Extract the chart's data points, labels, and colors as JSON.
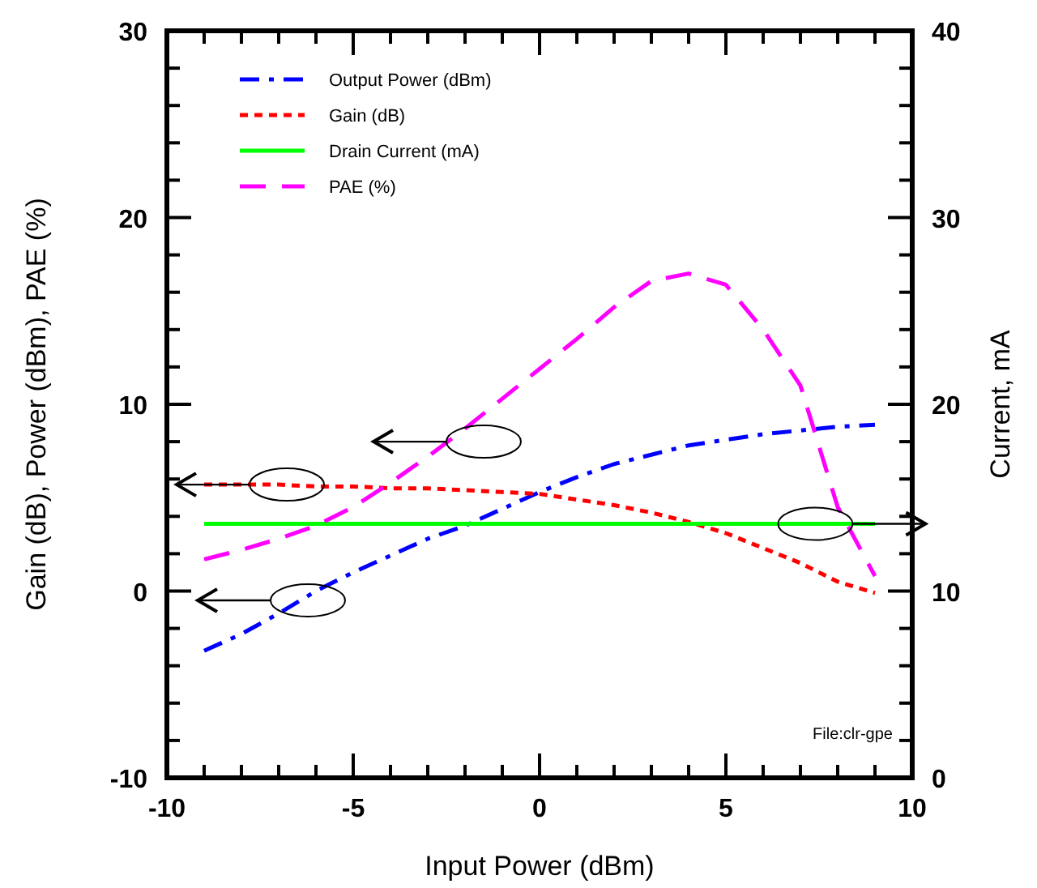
{
  "chart_data": {
    "type": "line",
    "xlabel": "Input Power (dBm)",
    "ylabel": "Gain (dB), Power (dBm), PAE (%)",
    "y2label": "Current, mA",
    "x": [
      -9,
      -8,
      -7,
      -6,
      -5,
      -4,
      -3,
      -2,
      -1,
      0,
      1,
      2,
      3,
      4,
      5,
      6,
      7,
      8,
      9
    ],
    "series": [
      {
        "name": "Output Power (dBm)",
        "color": "#0000ff",
        "line_style": "dashdot",
        "values": [
          -3.2,
          -2.3,
          -1.2,
          0,
          1.0,
          1.9,
          2.8,
          3.5,
          4.4,
          5.3,
          6.1,
          6.8,
          7.3,
          7.8,
          8.1,
          8.4,
          8.6,
          8.8,
          8.9
        ]
      },
      {
        "name": "Gain (dB)",
        "color": "#ff0000",
        "line_style": "dotted",
        "values": [
          5.7,
          5.7,
          5.7,
          5.6,
          5.6,
          5.5,
          5.5,
          5.4,
          5.3,
          5.2,
          4.9,
          4.6,
          4.2,
          3.7,
          3.1,
          2.3,
          1.5,
          0.5,
          -0.1
        ]
      },
      {
        "name": "Drain Current (mA)",
        "color": "#00ff00",
        "line_style": "solid",
        "axis": "y2",
        "values": [
          13.6,
          13.6,
          13.6,
          13.6,
          13.6,
          13.6,
          13.6,
          13.6,
          13.6,
          13.6,
          13.6,
          13.6,
          13.6,
          13.6,
          13.6,
          13.6,
          13.6,
          13.6,
          13.6
        ]
      },
      {
        "name": "PAE (%)",
        "color": "#ff00ff",
        "line_style": "dashed",
        "values": [
          1.7,
          2.2,
          2.8,
          3.5,
          4.5,
          5.8,
          7.2,
          8.7,
          10.3,
          11.9,
          13.5,
          15.2,
          16.6,
          17.0,
          16.4,
          14.0,
          11.0,
          4.5,
          0.8
        ]
      }
    ],
    "xlim": [
      -10,
      10
    ],
    "xticks": [
      -10,
      {
        "value": -9,
        "label": null
      },
      {
        "value": -8,
        "label": null
      },
      {
        "value": -7,
        "label": null
      },
      {
        "value": -6,
        "label": null
      },
      -5,
      {
        "value": -4,
        "label": null
      },
      {
        "value": -3,
        "label": null
      },
      {
        "value": -2,
        "label": null
      },
      {
        "value": -1,
        "label": null
      },
      0,
      {
        "value": 1,
        "label": null
      },
      {
        "value": 2,
        "label": null
      },
      {
        "value": 3,
        "label": null
      },
      {
        "value": 4,
        "label": null
      },
      5,
      {
        "value": 6,
        "label": null
      },
      {
        "value": 7,
        "label": null
      },
      {
        "value": 8,
        "label": null
      },
      {
        "value": 9,
        "label": null
      },
      10
    ],
    "ylim": [
      -10,
      30
    ],
    "yticks": [
      -10,
      {
        "value": -8,
        "label": null
      },
      {
        "value": -6,
        "label": null
      },
      {
        "value": -4,
        "label": null
      },
      {
        "value": -2,
        "label": null
      },
      0,
      {
        "value": 2,
        "label": null
      },
      {
        "value": 4,
        "label": null
      },
      {
        "value": 6,
        "label": null
      },
      {
        "value": 8,
        "label": null
      },
      10,
      {
        "value": 12,
        "label": null
      },
      {
        "value": 14,
        "label": null
      },
      {
        "value": 16,
        "label": null
      },
      {
        "value": 18,
        "label": null
      },
      20,
      {
        "value": 22,
        "label": null
      },
      {
        "value": 24,
        "label": null
      },
      {
        "value": 26,
        "label": null
      },
      {
        "value": 28,
        "label": null
      },
      30
    ],
    "y2lim": [
      0,
      40
    ],
    "y2ticks": [
      0,
      {
        "value": 2,
        "label": null
      },
      {
        "value": 4,
        "label": null
      },
      {
        "value": 6,
        "label": null
      },
      {
        "value": 8,
        "label": null
      },
      10,
      {
        "value": 12,
        "label": null
      },
      {
        "value": 14,
        "label": null
      },
      {
        "value": 16,
        "label": null
      },
      {
        "value": 18,
        "label": null
      },
      20,
      {
        "value": 22,
        "label": null
      },
      {
        "value": 24,
        "label": null
      },
      {
        "value": 26,
        "label": null
      },
      {
        "value": 28,
        "label": null
      },
      30,
      {
        "value": 32,
        "label": null
      },
      {
        "value": 34,
        "label": null
      },
      {
        "value": 36,
        "label": null
      },
      {
        "value": 38,
        "label": null
      },
      40
    ],
    "legend": "top left",
    "grid": false,
    "marker": "none",
    "annotations": [
      "File:clr-gpe"
    ]
  }
}
